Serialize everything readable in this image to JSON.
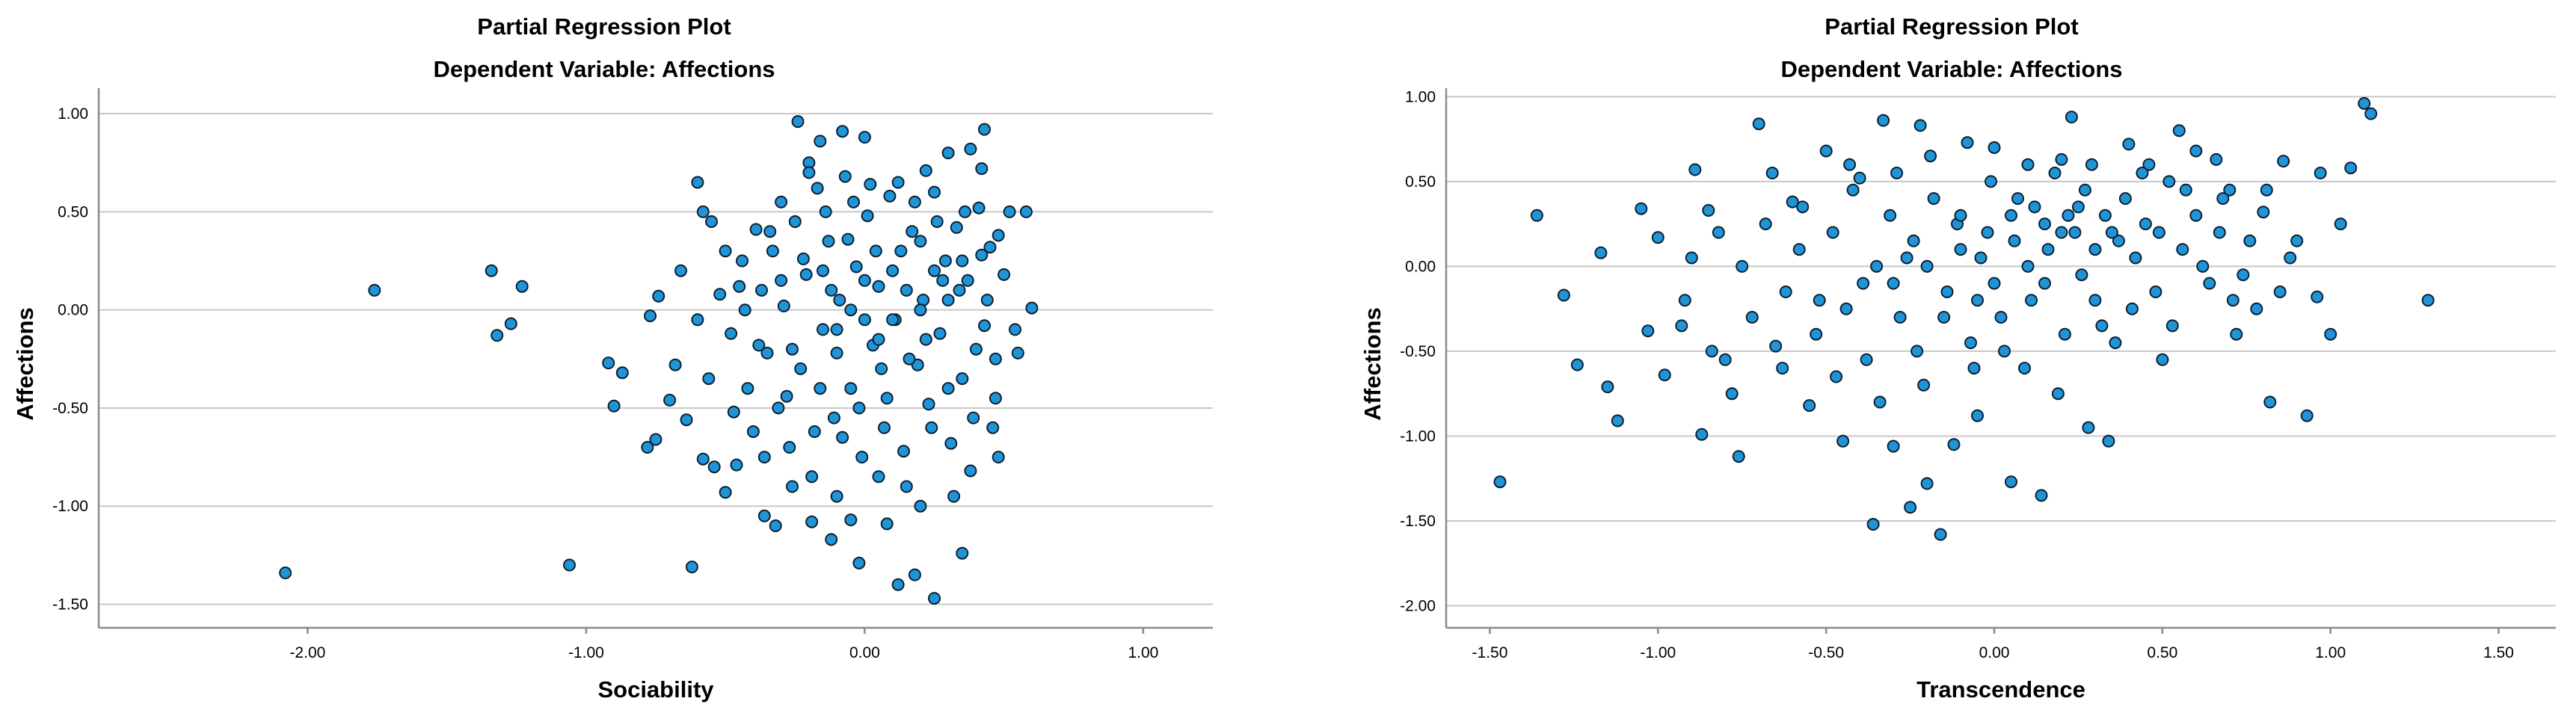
{
  "chart_data": [
    {
      "type": "scatter",
      "title": "Partial Regression Plot",
      "subtitle": "Dependent Variable: Affections",
      "xlabel": "Sociability",
      "ylabel": "Affections",
      "xlim": [
        -2.75,
        1.25
      ],
      "ylim": [
        -1.62,
        1.13
      ],
      "xticks": [
        -2.0,
        -1.0,
        0.0,
        1.0
      ],
      "xtick_labels": [
        "-2.00",
        "-1.00",
        "0.00",
        "1.00"
      ],
      "yticks": [
        1.0,
        0.5,
        0.0,
        -0.5,
        -1.0,
        -1.5
      ],
      "ytick_labels": [
        "1.00",
        "0.50",
        "0.00",
        "-0.50",
        "-1.00",
        "-1.50"
      ],
      "grid": true,
      "marker_color": "#1f95d8",
      "marker_edge": "#0d1f33",
      "points": [
        [
          -2.08,
          -1.34
        ],
        [
          -1.76,
          0.1
        ],
        [
          -1.34,
          0.2
        ],
        [
          -1.32,
          -0.13
        ],
        [
          -1.27,
          -0.07
        ],
        [
          -1.23,
          0.12
        ],
        [
          -1.06,
          -1.3
        ],
        [
          -0.92,
          -0.27
        ],
        [
          -0.9,
          -0.49
        ],
        [
          -0.87,
          -0.32
        ],
        [
          -0.78,
          -0.7
        ],
        [
          -0.77,
          -0.03
        ],
        [
          -0.75,
          -0.66
        ],
        [
          -0.74,
          0.07
        ],
        [
          -0.62,
          -1.31
        ],
        [
          -0.6,
          0.65
        ],
        [
          -0.58,
          0.5
        ],
        [
          -0.55,
          0.45
        ],
        [
          -0.5,
          -0.93
        ],
        [
          -0.46,
          -0.79
        ],
        [
          -0.39,
          0.41
        ],
        [
          -0.32,
          -1.1
        ],
        [
          -0.3,
          0.55
        ],
        [
          -0.24,
          0.96
        ],
        [
          -0.2,
          0.75
        ],
        [
          -0.19,
          -1.08
        ],
        [
          -0.16,
          0.86
        ],
        [
          -0.12,
          -1.17
        ],
        [
          -0.08,
          0.91
        ],
        [
          -0.05,
          -1.07
        ],
        [
          -0.02,
          -1.29
        ],
        [
          0.0,
          0.88
        ],
        [
          0.08,
          -1.09
        ],
        [
          0.12,
          -1.4
        ],
        [
          0.18,
          -1.35
        ],
        [
          0.25,
          -1.47
        ],
        [
          0.35,
          -1.24
        ],
        [
          0.38,
          0.82
        ],
        [
          0.43,
          0.92
        ],
        [
          0.48,
          -0.75
        ],
        [
          0.52,
          0.5
        ],
        [
          0.58,
          0.5
        ],
        [
          0.6,
          0.01
        ],
        [
          0.55,
          -0.22
        ],
        [
          0.47,
          -0.45
        ],
        [
          0.42,
          0.72
        ],
        [
          0.3,
          0.8
        ],
        [
          0.22,
          0.71
        ],
        [
          -0.7,
          -0.46
        ],
        [
          -0.66,
          0.2
        ],
        [
          -0.64,
          -0.56
        ],
        [
          -0.68,
          -0.28
        ],
        [
          -0.58,
          -0.76
        ],
        [
          -0.54,
          -0.8
        ],
        [
          -0.52,
          0.08
        ],
        [
          -0.48,
          -0.12
        ],
        [
          -0.44,
          0.25
        ],
        [
          -0.42,
          -0.4
        ],
        [
          -0.4,
          -0.62
        ],
        [
          -0.37,
          0.1
        ],
        [
          -0.35,
          -0.22
        ],
        [
          -0.33,
          0.3
        ],
        [
          -0.31,
          -0.5
        ],
        [
          -0.29,
          0.02
        ],
        [
          -0.27,
          -0.7
        ],
        [
          -0.25,
          0.45
        ],
        [
          -0.23,
          -0.3
        ],
        [
          -0.21,
          0.18
        ],
        [
          -0.19,
          -0.85
        ],
        [
          -0.17,
          0.62
        ],
        [
          -0.15,
          -0.1
        ],
        [
          -0.13,
          0.35
        ],
        [
          -0.11,
          -0.55
        ],
        [
          -0.09,
          0.05
        ],
        [
          -0.07,
          0.68
        ],
        [
          -0.05,
          -0.4
        ],
        [
          -0.03,
          0.22
        ],
        [
          -0.01,
          -0.75
        ],
        [
          0.01,
          0.48
        ],
        [
          0.03,
          -0.18
        ],
        [
          0.05,
          0.12
        ],
        [
          0.07,
          -0.6
        ],
        [
          0.09,
          0.58
        ],
        [
          0.11,
          -0.05
        ],
        [
          0.13,
          0.3
        ],
        [
          0.15,
          -0.9
        ],
        [
          0.17,
          0.4
        ],
        [
          0.19,
          -0.28
        ],
        [
          0.21,
          0.05
        ],
        [
          0.23,
          -0.48
        ],
        [
          0.25,
          0.6
        ],
        [
          0.27,
          -0.12
        ],
        [
          0.29,
          0.25
        ],
        [
          0.31,
          -0.68
        ],
        [
          0.33,
          0.42
        ],
        [
          0.35,
          -0.35
        ],
        [
          0.37,
          0.15
        ],
        [
          0.39,
          -0.55
        ],
        [
          0.41,
          0.52
        ],
        [
          0.43,
          -0.08
        ],
        [
          0.45,
          0.32
        ],
        [
          0.47,
          -0.25
        ],
        [
          -0.45,
          0.12
        ],
        [
          -0.38,
          -0.18
        ],
        [
          -0.34,
          0.4
        ],
        [
          -0.28,
          -0.44
        ],
        [
          -0.22,
          0.26
        ],
        [
          -0.18,
          -0.62
        ],
        [
          -0.14,
          0.5
        ],
        [
          -0.1,
          -0.22
        ],
        [
          -0.06,
          0.36
        ],
        [
          -0.02,
          -0.5
        ],
        [
          0.02,
          0.64
        ],
        [
          0.06,
          -0.3
        ],
        [
          0.1,
          0.2
        ],
        [
          0.14,
          -0.72
        ],
        [
          0.18,
          0.55
        ],
        [
          0.22,
          -0.15
        ],
        [
          0.26,
          0.45
        ],
        [
          0.3,
          -0.4
        ],
        [
          0.34,
          0.1
        ],
        [
          0.38,
          -0.82
        ],
        [
          0.42,
          0.28
        ],
        [
          0.46,
          -0.6
        ],
        [
          0.5,
          0.18
        ],
        [
          0.54,
          -0.1
        ],
        [
          -0.6,
          -0.05
        ],
        [
          -0.56,
          -0.35
        ],
        [
          -0.5,
          0.3
        ],
        [
          -0.47,
          -0.52
        ],
        [
          -0.43,
          0.0
        ],
        [
          -0.36,
          -0.75
        ],
        [
          -0.3,
          0.15
        ],
        [
          -0.26,
          -0.2
        ],
        [
          -0.2,
          0.7
        ],
        [
          -0.16,
          -0.4
        ],
        [
          -0.12,
          0.1
        ],
        [
          -0.08,
          -0.65
        ],
        [
          -0.04,
          0.55
        ],
        [
          0.0,
          -0.05
        ],
        [
          0.04,
          0.3
        ],
        [
          0.08,
          -0.45
        ],
        [
          0.12,
          0.65
        ],
        [
          0.16,
          -0.25
        ],
        [
          0.2,
          0.35
        ],
        [
          0.24,
          -0.6
        ],
        [
          0.28,
          0.15
        ],
        [
          0.32,
          -0.95
        ],
        [
          0.36,
          0.5
        ],
        [
          0.4,
          -0.2
        ],
        [
          0.44,
          0.05
        ],
        [
          0.48,
          0.38
        ],
        [
          -0.26,
          -0.9
        ],
        [
          -0.1,
          -0.95
        ],
        [
          0.05,
          -0.85
        ],
        [
          0.2,
          -1.0
        ],
        [
          -0.36,
          -1.05
        ],
        [
          0.1,
          -0.05
        ],
        [
          0.0,
          0.15
        ],
        [
          -0.05,
          0.0
        ],
        [
          0.15,
          0.1
        ],
        [
          0.25,
          0.2
        ],
        [
          0.2,
          0.0
        ],
        [
          0.3,
          0.05
        ],
        [
          -0.15,
          0.2
        ],
        [
          -0.1,
          -0.1
        ],
        [
          0.05,
          -0.15
        ],
        [
          0.35,
          0.25
        ]
      ]
    },
    {
      "type": "scatter",
      "title": "Partial Regression Plot",
      "subtitle": "Dependent Variable: Affections",
      "xlabel": "Transcendence",
      "ylabel": "Affections",
      "xlim": [
        -1.63,
        1.67
      ],
      "ylim": [
        -2.13,
        1.05
      ],
      "xticks": [
        -1.5,
        -1.0,
        -0.5,
        0.0,
        0.5,
        1.0,
        1.5
      ],
      "xtick_labels": [
        "-1.50",
        "-1.00",
        "-0.50",
        "0.00",
        "0.50",
        "1.00",
        "1.50"
      ],
      "yticks": [
        1.0,
        0.5,
        0.0,
        -0.5,
        -1.0,
        -1.5,
        -2.0
      ],
      "ytick_labels": [
        "1.00",
        "0.50",
        "0.00",
        "-0.50",
        "-1.00",
        "-1.50",
        "-2.00"
      ],
      "grid": true,
      "marker_color": "#1f95d8",
      "marker_edge": "#0d1f33",
      "points": [
        [
          -1.47,
          -1.27
        ],
        [
          -1.36,
          0.3
        ],
        [
          -1.28,
          -0.17
        ],
        [
          -1.24,
          -0.58
        ],
        [
          -1.15,
          -0.71
        ],
        [
          -1.12,
          -0.91
        ],
        [
          -1.17,
          0.08
        ],
        [
          -1.05,
          0.34
        ],
        [
          -1.03,
          -0.38
        ],
        [
          -1.0,
          0.17
        ],
        [
          -0.98,
          -0.64
        ],
        [
          -0.93,
          -0.35
        ],
        [
          -0.89,
          0.57
        ],
        [
          -0.87,
          -0.99
        ],
        [
          -0.85,
          0.33
        ],
        [
          -0.8,
          -0.55
        ],
        [
          -0.76,
          -1.12
        ],
        [
          -0.7,
          0.84
        ],
        [
          -0.65,
          -0.47
        ],
        [
          -0.6,
          0.38
        ],
        [
          -0.55,
          -0.82
        ],
        [
          -0.5,
          0.68
        ],
        [
          -0.45,
          -1.03
        ],
        [
          -0.4,
          0.52
        ],
        [
          -0.36,
          -1.52
        ],
        [
          -0.33,
          0.86
        ],
        [
          -0.3,
          -1.06
        ],
        [
          -0.25,
          -1.42
        ],
        [
          -0.22,
          0.83
        ],
        [
          -0.2,
          -1.28
        ],
        [
          -0.16,
          -1.58
        ],
        [
          -0.12,
          -1.05
        ],
        [
          -0.08,
          0.73
        ],
        [
          -0.05,
          -0.88
        ],
        [
          0.0,
          0.7
        ],
        [
          0.05,
          -1.27
        ],
        [
          0.1,
          0.6
        ],
        [
          0.14,
          -1.35
        ],
        [
          0.2,
          0.63
        ],
        [
          0.23,
          0.88
        ],
        [
          0.28,
          -0.95
        ],
        [
          0.34,
          -1.03
        ],
        [
          0.4,
          0.72
        ],
        [
          0.46,
          0.6
        ],
        [
          0.5,
          -0.55
        ],
        [
          0.55,
          0.8
        ],
        [
          0.6,
          0.68
        ],
        [
          0.66,
          0.63
        ],
        [
          0.7,
          0.45
        ],
        [
          0.74,
          -0.05
        ],
        [
          0.8,
          0.32
        ],
        [
          0.82,
          -0.8
        ],
        [
          0.86,
          0.62
        ],
        [
          0.9,
          0.15
        ],
        [
          0.93,
          -0.88
        ],
        [
          0.97,
          0.55
        ],
        [
          1.0,
          -0.4
        ],
        [
          1.03,
          0.25
        ],
        [
          1.06,
          0.58
        ],
        [
          1.1,
          0.96
        ],
        [
          1.12,
          0.9
        ],
        [
          1.29,
          -0.2
        ],
        [
          0.96,
          -0.18
        ],
        [
          0.88,
          0.05
        ],
        [
          0.78,
          -0.25
        ],
        [
          0.72,
          -0.4
        ],
        [
          -0.75,
          0.0
        ],
        [
          -0.72,
          -0.3
        ],
        [
          -0.68,
          0.25
        ],
        [
          -0.62,
          -0.15
        ],
        [
          -0.58,
          0.1
        ],
        [
          -0.53,
          -0.4
        ],
        [
          -0.48,
          0.2
        ],
        [
          -0.44,
          -0.25
        ],
        [
          -0.42,
          0.45
        ],
        [
          -0.38,
          -0.55
        ],
        [
          -0.35,
          0.0
        ],
        [
          -0.31,
          0.3
        ],
        [
          -0.28,
          -0.3
        ],
        [
          -0.24,
          0.15
        ],
        [
          -0.21,
          -0.7
        ],
        [
          -0.18,
          0.4
        ],
        [
          -0.14,
          -0.15
        ],
        [
          -0.11,
          0.25
        ],
        [
          -0.07,
          -0.45
        ],
        [
          -0.04,
          0.05
        ],
        [
          -0.01,
          0.5
        ],
        [
          0.02,
          -0.3
        ],
        [
          0.06,
          0.15
        ],
        [
          0.09,
          -0.6
        ],
        [
          0.12,
          0.35
        ],
        [
          0.15,
          -0.1
        ],
        [
          0.18,
          0.55
        ],
        [
          0.21,
          -0.4
        ],
        [
          0.24,
          0.2
        ],
        [
          0.27,
          0.45
        ],
        [
          0.3,
          -0.2
        ],
        [
          0.33,
          0.3
        ],
        [
          0.36,
          -0.45
        ],
        [
          0.39,
          0.4
        ],
        [
          0.42,
          0.05
        ],
        [
          0.45,
          0.25
        ],
        [
          0.48,
          -0.15
        ],
        [
          0.52,
          0.5
        ],
        [
          0.56,
          0.1
        ],
        [
          0.6,
          0.3
        ],
        [
          0.64,
          -0.1
        ],
        [
          0.68,
          0.4
        ],
        [
          -0.92,
          -0.2
        ],
        [
          -0.9,
          0.05
        ],
        [
          -0.84,
          -0.5
        ],
        [
          -0.82,
          0.2
        ],
        [
          -0.78,
          -0.75
        ],
        [
          -0.66,
          0.55
        ],
        [
          -0.63,
          -0.6
        ],
        [
          -0.57,
          0.35
        ],
        [
          -0.52,
          -0.2
        ],
        [
          -0.47,
          -0.65
        ],
        [
          -0.43,
          0.6
        ],
        [
          -0.39,
          -0.1
        ],
        [
          -0.34,
          -0.8
        ],
        [
          -0.29,
          0.55
        ],
        [
          -0.26,
          0.05
        ],
        [
          -0.23,
          -0.5
        ],
        [
          -0.19,
          0.65
        ],
        [
          -0.15,
          -0.3
        ],
        [
          -0.1,
          0.3
        ],
        [
          -0.06,
          -0.6
        ],
        [
          -0.02,
          0.2
        ],
        [
          0.03,
          -0.5
        ],
        [
          0.07,
          0.4
        ],
        [
          0.11,
          -0.2
        ],
        [
          0.16,
          0.1
        ],
        [
          0.19,
          -0.75
        ],
        [
          0.22,
          0.3
        ],
        [
          0.26,
          -0.05
        ],
        [
          0.29,
          0.6
        ],
        [
          0.32,
          -0.35
        ],
        [
          0.37,
          0.15
        ],
        [
          0.41,
          -0.25
        ],
        [
          0.44,
          0.55
        ],
        [
          0.49,
          0.2
        ],
        [
          0.53,
          -0.35
        ],
        [
          0.57,
          0.45
        ],
        [
          0.62,
          0.0
        ],
        [
          0.67,
          0.2
        ],
        [
          0.71,
          -0.2
        ],
        [
          0.76,
          0.15
        ],
        [
          0.81,
          0.45
        ],
        [
          0.85,
          -0.15
        ],
        [
          -0.2,
          0.0
        ],
        [
          -0.1,
          0.1
        ],
        [
          0.0,
          -0.1
        ],
        [
          0.1,
          0.0
        ],
        [
          0.2,
          0.2
        ],
        [
          0.3,
          0.1
        ],
        [
          -0.3,
          -0.1
        ],
        [
          0.25,
          0.35
        ],
        [
          0.15,
          0.25
        ],
        [
          0.35,
          0.2
        ],
        [
          0.05,
          0.3
        ],
        [
          -0.05,
          -0.2
        ]
      ]
    }
  ]
}
